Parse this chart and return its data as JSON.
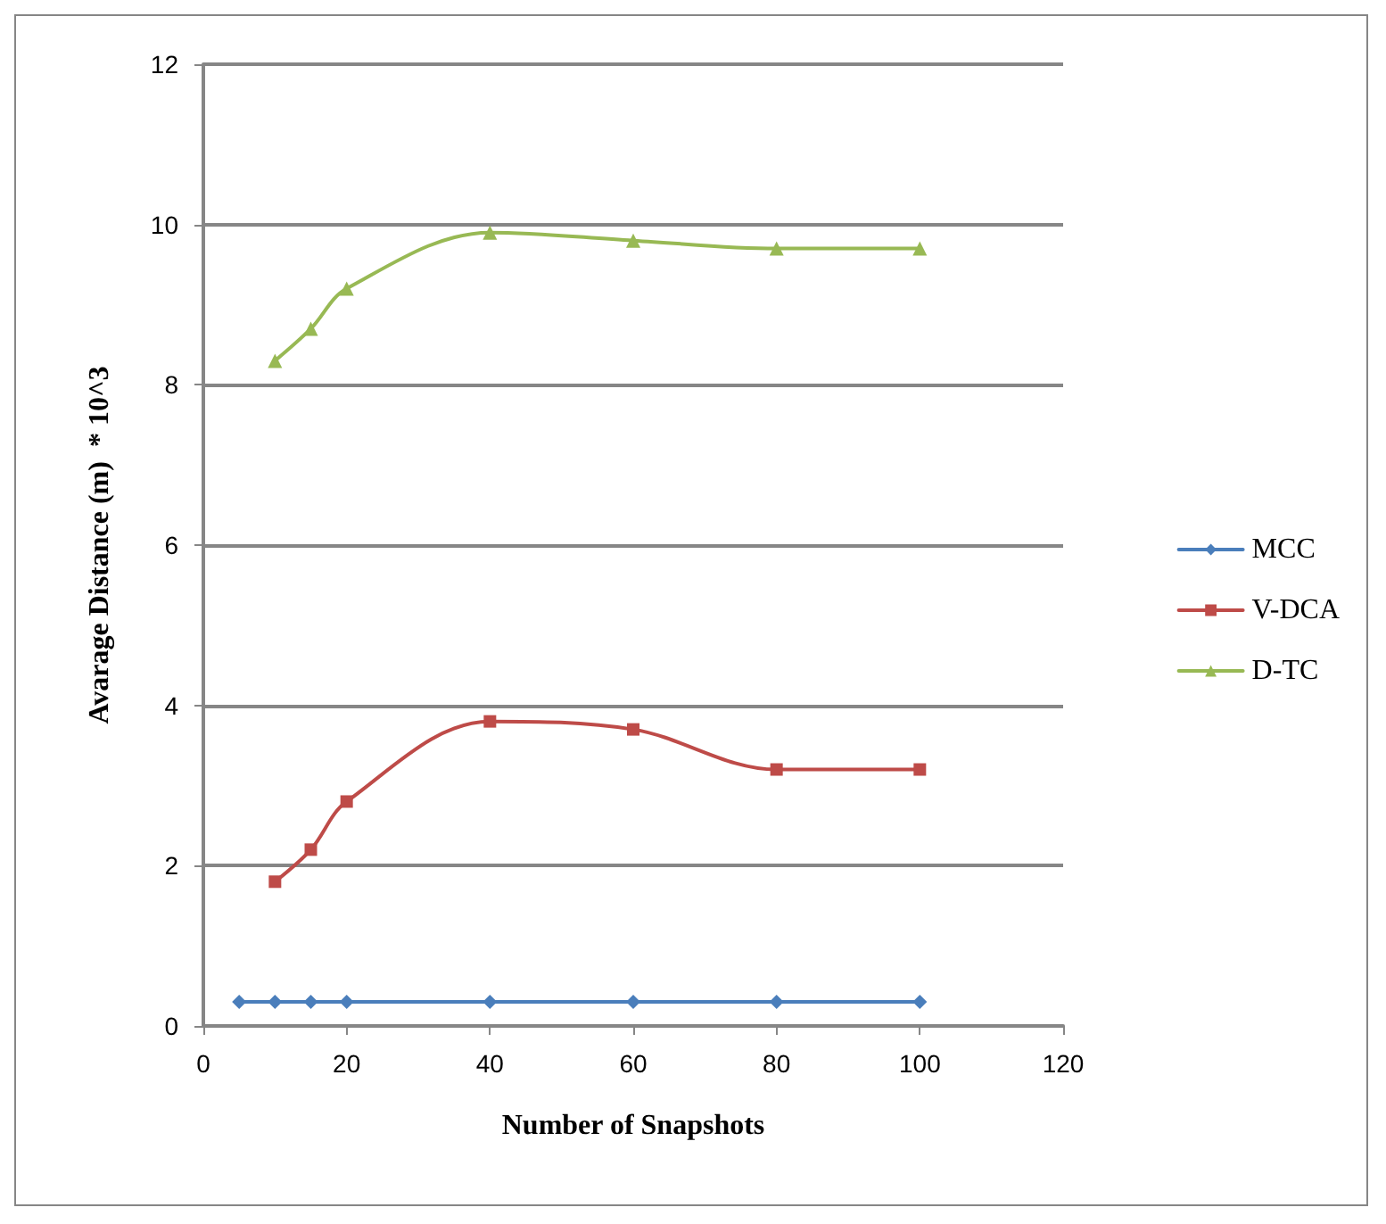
{
  "chart_data": {
    "type": "line",
    "xlabel": "Number of Snapshots",
    "ylabel": "Avarage Distance (m)  * 10^3",
    "xlim": [
      0,
      120
    ],
    "xticks": [
      0,
      20,
      40,
      60,
      80,
      100,
      120
    ],
    "ylim": [
      0,
      12
    ],
    "yticks": [
      0,
      2,
      4,
      6,
      8,
      10,
      12
    ],
    "grid": "y",
    "legend": "right",
    "line_style": "solid",
    "series": [
      {
        "name": "MCC",
        "color": "#4a7ebb",
        "marker": "diamond",
        "x": [
          5,
          10,
          15,
          20,
          40,
          60,
          80,
          100
        ],
        "values": [
          0.3,
          0.3,
          0.3,
          0.3,
          0.3,
          0.3,
          0.3,
          0.3
        ]
      },
      {
        "name": "V-DCA",
        "color": "#be4b48",
        "marker": "square",
        "x": [
          10,
          15,
          20,
          40,
          60,
          80,
          100
        ],
        "values": [
          1.8,
          2.2,
          2.8,
          3.8,
          3.7,
          3.2,
          3.2
        ]
      },
      {
        "name": "D-TC",
        "color": "#98b954",
        "marker": "triangle",
        "x": [
          10,
          15,
          20,
          40,
          60,
          80,
          100
        ],
        "values": [
          8.3,
          8.7,
          9.2,
          9.9,
          9.8,
          9.7,
          9.7
        ]
      }
    ]
  }
}
